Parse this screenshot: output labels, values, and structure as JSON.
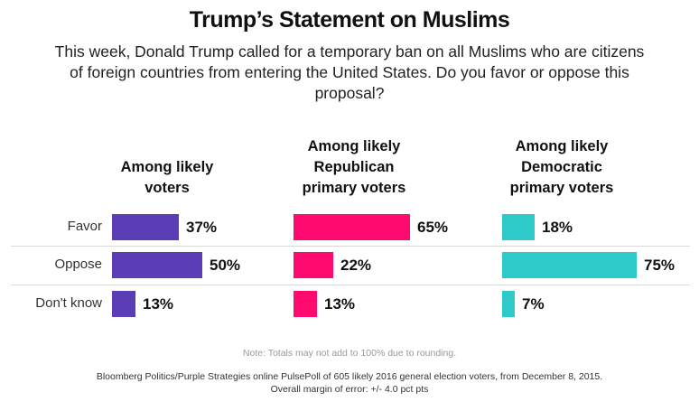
{
  "title": "Trump’s Statement on Muslims",
  "subtitle": "This week, Donald Trump called for a temporary ban on all Muslims who are citizens of foreign countries from entering the United States. Do you favor or oppose this proposal?",
  "note": "Note: Totals may not add to 100% due to rounding.",
  "source_line1": "Bloomberg Politics/Purple Strategies online PulsePoll of 605 likely 2016 general election voters, from December 8, 2015.",
  "source_line2": "Overall margin of error: +/- 4.0 pct pts",
  "chart_data": {
    "type": "bar",
    "orientation": "horizontal",
    "categories": [
      "Favor",
      "Oppose",
      "Don't know"
    ],
    "value_format": "percent",
    "series": [
      {
        "name": "Among likely voters",
        "title_lines": [
          "Among likely",
          "voters"
        ],
        "color": "#5b3db5",
        "values": [
          37,
          50,
          13
        ],
        "labels": [
          "37%",
          "50%",
          "13%"
        ]
      },
      {
        "name": "Among likely Republican primary voters",
        "title_lines": [
          "Among likely",
          "Republican",
          "primary voters"
        ],
        "color": "#ff0a6e",
        "values": [
          65,
          22,
          13
        ],
        "labels": [
          "65%",
          "22%",
          "13%"
        ]
      },
      {
        "name": "Among likely Democratic primary voters",
        "title_lines": [
          "Among likely",
          "Democratic",
          "primary voters"
        ],
        "color": "#2ec9c9",
        "values": [
          18,
          75,
          7
        ],
        "labels": [
          "18%",
          "75%",
          "7%"
        ]
      }
    ]
  }
}
